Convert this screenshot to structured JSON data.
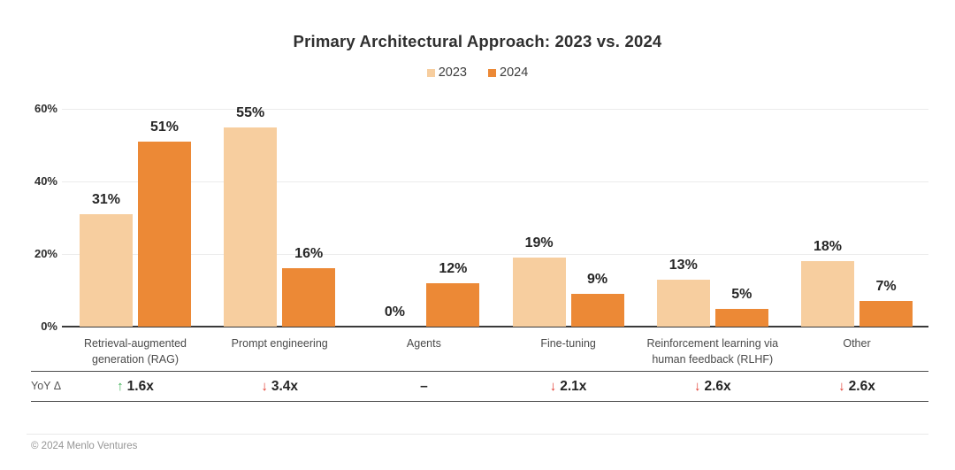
{
  "title": "Primary Architectural Approach: 2023 vs. 2024",
  "legend": [
    {
      "label": "2023",
      "color": "#F7CE9F"
    },
    {
      "label": "2024",
      "color": "#EC8936"
    }
  ],
  "chart_data": {
    "type": "bar",
    "title": "Primary Architectural Approach: 2023 vs. 2024",
    "categories": [
      "Retrieval-augmented generation (RAG)",
      "Prompt engineering",
      "Agents",
      "Fine-tuning",
      "Reinforcement learning via human feedback (RLHF)",
      "Other"
    ],
    "category_lines": [
      [
        "Retrieval-augmented",
        "generation (RAG)"
      ],
      [
        "Prompt engineering"
      ],
      [
        "Agents"
      ],
      [
        "Fine-tuning"
      ],
      [
        "Reinforcement learning via",
        "human feedback (RLHF)"
      ],
      [
        "Other"
      ]
    ],
    "series": [
      {
        "name": "2023",
        "color": "#F7CE9F",
        "values": [
          31,
          55,
          0,
          19,
          13,
          18
        ]
      },
      {
        "name": "2024",
        "color": "#EC8936",
        "values": [
          51,
          16,
          12,
          9,
          5,
          7
        ]
      }
    ],
    "value_label_suffix": "%",
    "xlabel": "",
    "ylabel": "",
    "yticks": [
      0,
      20,
      40,
      60
    ],
    "ytick_suffix": "%",
    "ylim": [
      0,
      60
    ],
    "grid": true,
    "legend_position": "top-center"
  },
  "yoy": {
    "row_label": "YoY Δ",
    "up_arrow": "↑",
    "down_arrow": "↓",
    "up_color": "#3BB054",
    "down_color": "#E0382C",
    "cells": [
      {
        "direction": "up",
        "text": "1.6x"
      },
      {
        "direction": "down",
        "text": "3.4x"
      },
      {
        "direction": "none",
        "text": "–"
      },
      {
        "direction": "down",
        "text": "2.1x"
      },
      {
        "direction": "down",
        "text": "2.6x"
      },
      {
        "direction": "down",
        "text": "2.6x"
      }
    ]
  },
  "footer": {
    "copyright": "© 2024 Menlo Ventures"
  }
}
